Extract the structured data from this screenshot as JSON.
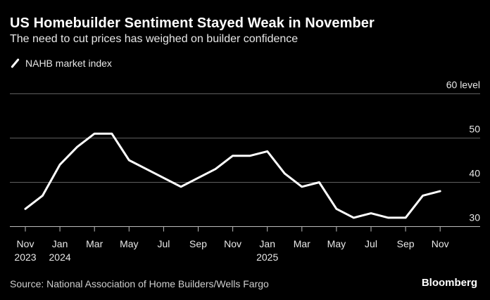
{
  "header": {
    "title": "US Homebuilder Sentiment Stayed Weak in November",
    "subtitle": "The need to cut prices has weighed on builder confidence"
  },
  "footer": {
    "source": "Source: National Association of Home Builders/Wells Fargo",
    "brand": "Bloomberg"
  },
  "colors": {
    "background": "#000000",
    "line": "#ffffff",
    "grid": "#666666",
    "text": "#e8e8e8"
  },
  "chart_data": {
    "type": "line",
    "title": "US Homebuilder Sentiment Stayed Weak in November",
    "subtitle": "The need to cut prices has weighed on builder confidence",
    "ylim": [
      28,
      60
    ],
    "yticks": [
      30,
      40,
      50,
      60
    ],
    "ytick_labels": [
      "30",
      "40",
      "50",
      "60 level"
    ],
    "grid": true,
    "legend": "top-left",
    "x": [
      "2023-11",
      "2023-12",
      "2024-01",
      "2024-02",
      "2024-03",
      "2024-04",
      "2024-05",
      "2024-06",
      "2024-07",
      "2024-08",
      "2024-09",
      "2024-10",
      "2024-11",
      "2024-12",
      "2025-01",
      "2025-02",
      "2025-03",
      "2025-04",
      "2025-05",
      "2025-06",
      "2025-07",
      "2025-08",
      "2025-09",
      "2025-10",
      "2025-11"
    ],
    "xtick_labels": [
      {
        "line1": "Nov",
        "line2": "2023"
      },
      {
        "line1": "Jan",
        "line2": "2024"
      },
      {
        "line1": "Mar",
        "line2": ""
      },
      {
        "line1": "May",
        "line2": ""
      },
      {
        "line1": "Jul",
        "line2": ""
      },
      {
        "line1": "Sep",
        "line2": ""
      },
      {
        "line1": "Nov",
        "line2": ""
      },
      {
        "line1": "Jan",
        "line2": "2025"
      },
      {
        "line1": "Mar",
        "line2": ""
      },
      {
        "line1": "May",
        "line2": ""
      },
      {
        "line1": "Jul",
        "line2": ""
      },
      {
        "line1": "Sep",
        "line2": ""
      },
      {
        "line1": "Nov",
        "line2": ""
      }
    ],
    "series": [
      {
        "name": "NAHB market index",
        "values": [
          34,
          37,
          44,
          48,
          51,
          51,
          45,
          43,
          41,
          39,
          41,
          43,
          46,
          46,
          47,
          42,
          39,
          40,
          34,
          32,
          33,
          32,
          32,
          37,
          38
        ]
      }
    ]
  }
}
